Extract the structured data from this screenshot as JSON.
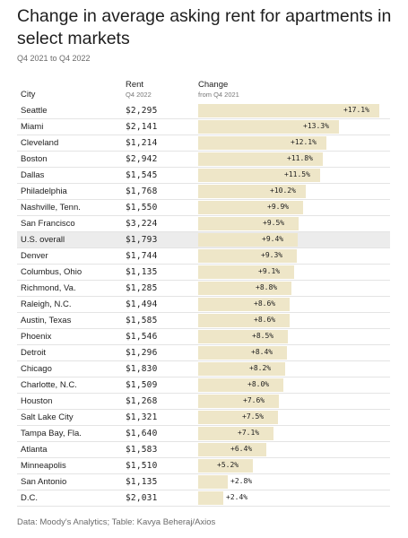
{
  "header": {
    "title": "Change in average asking rent for apartments in select markets",
    "subtitle": "Q4 2021 to Q4 2022"
  },
  "columns": {
    "city": "City",
    "rent": "Rent",
    "rent_sub": "Q4 2022",
    "change": "Change",
    "change_sub": "from Q4 2021"
  },
  "chart_data": {
    "type": "table",
    "title": "Change in average asking rent for apartments in select markets",
    "subtitle": "Q4 2021 to Q4 2022",
    "columns": [
      "City",
      "Rent",
      "Change"
    ],
    "highlight": "U.S. overall",
    "rows": [
      {
        "city": "Seattle",
        "rent": "$2,295",
        "change": 17.1,
        "change_label": "+17.1%"
      },
      {
        "city": "Miami",
        "rent": "$2,141",
        "change": 13.3,
        "change_label": "+13.3%"
      },
      {
        "city": "Cleveland",
        "rent": "$1,214",
        "change": 12.1,
        "change_label": "+12.1%"
      },
      {
        "city": "Boston",
        "rent": "$2,942",
        "change": 11.8,
        "change_label": "+11.8%"
      },
      {
        "city": "Dallas",
        "rent": "$1,545",
        "change": 11.5,
        "change_label": "+11.5%"
      },
      {
        "city": "Philadelphia",
        "rent": "$1,768",
        "change": 10.2,
        "change_label": "+10.2%"
      },
      {
        "city": "Nashville, Tenn.",
        "rent": "$1,550",
        "change": 9.9,
        "change_label": "+9.9%"
      },
      {
        "city": "San Francisco",
        "rent": "$3,224",
        "change": 9.5,
        "change_label": "+9.5%"
      },
      {
        "city": "U.S. overall",
        "rent": "$1,793",
        "change": 9.4,
        "change_label": "+9.4%"
      },
      {
        "city": "Denver",
        "rent": "$1,744",
        "change": 9.3,
        "change_label": "+9.3%"
      },
      {
        "city": "Columbus, Ohio",
        "rent": "$1,135",
        "change": 9.1,
        "change_label": "+9.1%"
      },
      {
        "city": "Richmond, Va.",
        "rent": "$1,285",
        "change": 8.8,
        "change_label": "+8.8%"
      },
      {
        "city": "Raleigh, N.C.",
        "rent": "$1,494",
        "change": 8.6,
        "change_label": "+8.6%"
      },
      {
        "city": "Austin, Texas",
        "rent": "$1,585",
        "change": 8.6,
        "change_label": "+8.6%"
      },
      {
        "city": "Phoenix",
        "rent": "$1,546",
        "change": 8.5,
        "change_label": "+8.5%"
      },
      {
        "city": "Detroit",
        "rent": "$1,296",
        "change": 8.4,
        "change_label": "+8.4%"
      },
      {
        "city": "Chicago",
        "rent": "$1,830",
        "change": 8.2,
        "change_label": "+8.2%"
      },
      {
        "city": "Charlotte, N.C.",
        "rent": "$1,509",
        "change": 8.0,
        "change_label": "+8.0%"
      },
      {
        "city": "Houston",
        "rent": "$1,268",
        "change": 7.6,
        "change_label": "+7.6%"
      },
      {
        "city": "Salt Lake City",
        "rent": "$1,321",
        "change": 7.5,
        "change_label": "+7.5%"
      },
      {
        "city": "Tampa Bay, Fla.",
        "rent": "$1,640",
        "change": 7.1,
        "change_label": "+7.1%"
      },
      {
        "city": "Atlanta",
        "rent": "$1,583",
        "change": 6.4,
        "change_label": "+6.4%"
      },
      {
        "city": "Minneapolis",
        "rent": "$1,510",
        "change": 5.2,
        "change_label": "+5.2%"
      },
      {
        "city": "San Antonio",
        "rent": "$1,135",
        "change": 2.8,
        "change_label": "+2.8%"
      },
      {
        "city": "D.C.",
        "rent": "$2,031",
        "change": 2.4,
        "change_label": "+2.4%"
      }
    ],
    "xlim": [
      0,
      17.1
    ]
  },
  "colors": {
    "bar": "#eee6c8",
    "highlight_row": "#ececec"
  },
  "footer": {
    "source": "Data: Moody's Analytics; Table: Kavya Beheraj/Axios"
  }
}
